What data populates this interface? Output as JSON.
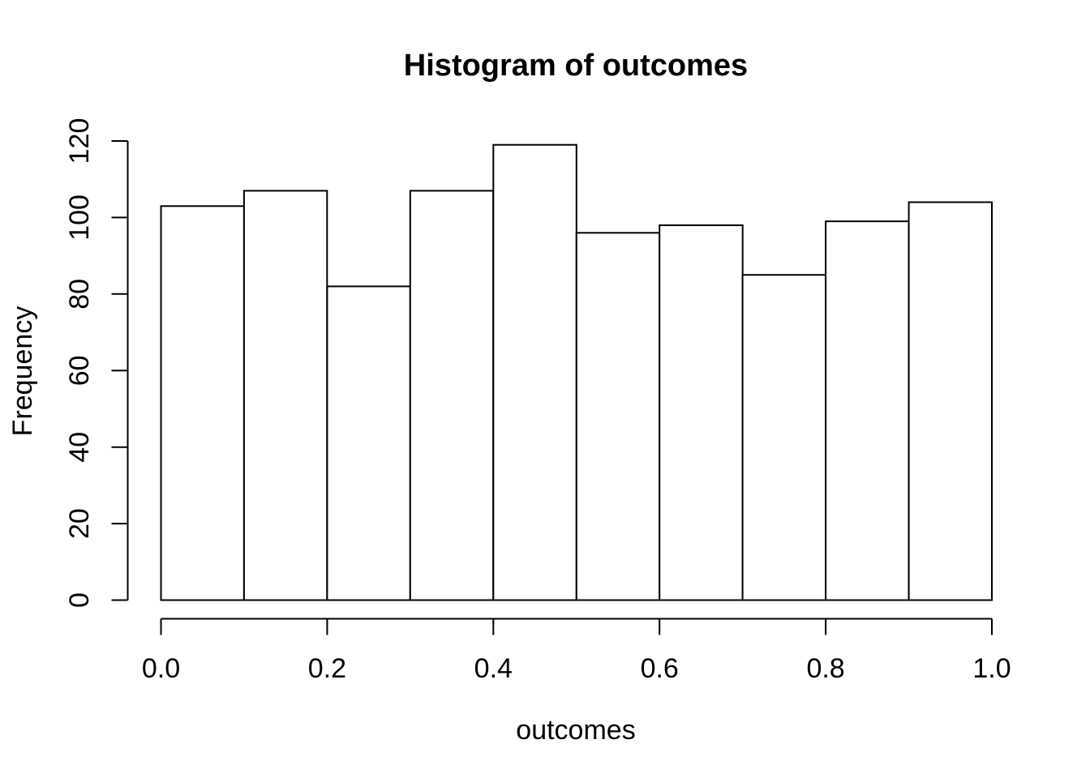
{
  "chart_data": {
    "type": "bar",
    "subtype": "histogram",
    "title": "Histogram of outcomes",
    "xlabel": "outcomes",
    "ylabel": "Frequency",
    "breaks": [
      0.0,
      0.1,
      0.2,
      0.3,
      0.4,
      0.5,
      0.6,
      0.7,
      0.8,
      0.9,
      1.0
    ],
    "counts": [
      103,
      107,
      82,
      107,
      119,
      96,
      98,
      85,
      99,
      104
    ],
    "total_count": 1000,
    "x_ticks": {
      "values": [
        0.0,
        0.2,
        0.4,
        0.6,
        0.8,
        1.0
      ],
      "labels": [
        "0.0",
        "0.2",
        "0.4",
        "0.6",
        "0.8",
        "1.0"
      ]
    },
    "y_ticks": {
      "values": [
        0,
        20,
        40,
        60,
        80,
        100,
        120
      ],
      "labels": [
        "0",
        "20",
        "40",
        "60",
        "80",
        "100",
        "120"
      ]
    },
    "xlim": [
      0.0,
      1.0
    ],
    "ylim": [
      0,
      120
    ],
    "grid": false,
    "legend": null,
    "colors": {
      "background": "#ffffff",
      "bar_fill": "#ffffff",
      "bar_stroke": "#000000",
      "axis": "#000000",
      "text": "#000000"
    }
  }
}
